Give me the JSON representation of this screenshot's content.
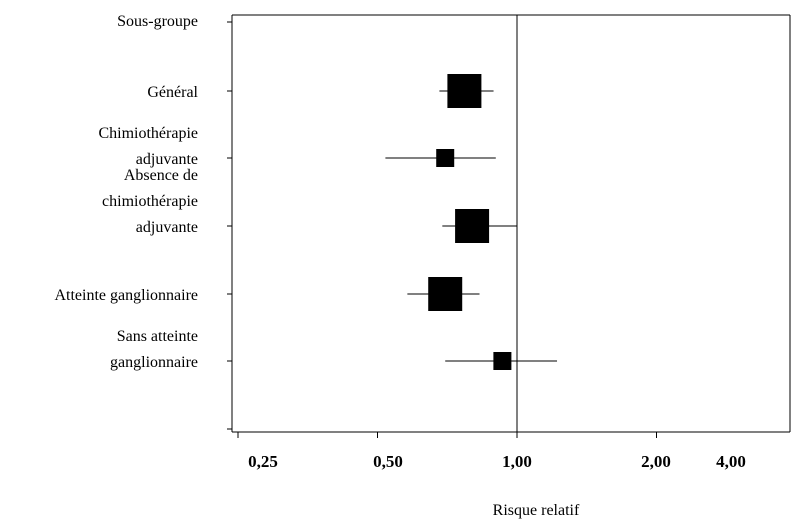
{
  "chart_data": {
    "type": "forest",
    "header": "Sous-groupe",
    "xlabel": "Risque relatif",
    "x_scale": "log2",
    "xlim": [
      0.25,
      4.0
    ],
    "reference_line": 1.0,
    "x_ticks": [
      {
        "value": 0.25,
        "label": "0,25"
      },
      {
        "value": 0.5,
        "label": "0,50"
      },
      {
        "value": 1.0,
        "label": "1,00"
      },
      {
        "value": 2.0,
        "label": "2,00"
      },
      {
        "value": 4.0,
        "label": "4,00"
      }
    ],
    "rows": [
      {
        "label": [
          "Général"
        ],
        "estimate": 0.77,
        "ci_low": 0.68,
        "ci_high": 0.89,
        "marker": "large"
      },
      {
        "label": [
          "Chimiothérapie",
          "adjuvante"
        ],
        "estimate": 0.7,
        "ci_low": 0.52,
        "ci_high": 0.9,
        "marker": "small"
      },
      {
        "label": [
          "Absence de",
          "chimiothérapie",
          "adjuvante"
        ],
        "estimate": 0.8,
        "ci_low": 0.69,
        "ci_high": 1.0,
        "marker": "large"
      },
      {
        "label": [
          "Atteinte ganglionnaire"
        ],
        "estimate": 0.7,
        "ci_low": 0.58,
        "ci_high": 0.83,
        "marker": "large"
      },
      {
        "label": [
          "Sans atteinte",
          "ganglionnaire"
        ],
        "estimate": 0.93,
        "ci_low": 0.7,
        "ci_high": 1.22,
        "marker": "small"
      }
    ]
  }
}
